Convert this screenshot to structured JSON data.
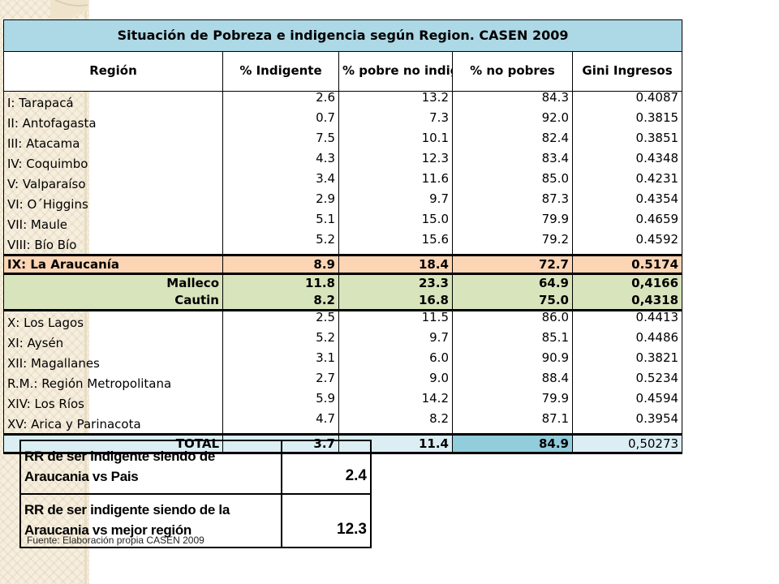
{
  "title": "Situación de Pobreza e indigencia según Region. CASEN 2009",
  "headers": {
    "region": "Región",
    "indigente": "% Indigente",
    "pobre_no_indigente": "% pobre no indigente",
    "no_pobres": "% no pobres",
    "gini": "Gini Ingresos"
  },
  "regions_top": [
    {
      "name": "I: Tarapacá",
      "indigente": "2.6",
      "pobre": "13.2",
      "no_pobres": "84.3",
      "gini": "0.4087"
    },
    {
      "name": "II: Antofagasta",
      "indigente": "0.7",
      "pobre": "7.3",
      "no_pobres": "92.0",
      "gini": "0.3815"
    },
    {
      "name": "III: Atacama",
      "indigente": "7.5",
      "pobre": "10.1",
      "no_pobres": "82.4",
      "gini": "0.3851"
    },
    {
      "name": "IV: Coquimbo",
      "indigente": "4.3",
      "pobre": "12.3",
      "no_pobres": "83.4",
      "gini": "0.4348"
    },
    {
      "name": "V: Valparaíso",
      "indigente": "3.4",
      "pobre": "11.6",
      "no_pobres": "85.0",
      "gini": "0.4231"
    },
    {
      "name": "VI: O´Higgins",
      "indigente": "2.9",
      "pobre": "9.7",
      "no_pobres": "87.3",
      "gini": "0.4354"
    },
    {
      "name": "VII: Maule",
      "indigente": "5.1",
      "pobre": "15.0",
      "no_pobres": "79.9",
      "gini": "0.4659"
    },
    {
      "name": "VIII: Bío Bío",
      "indigente": "5.2",
      "pobre": "15.6",
      "no_pobres": "79.2",
      "gini": "0.4592"
    }
  ],
  "araucania": {
    "name": "IX: La Araucanía",
    "indigente": "8.9",
    "pobre": "18.4",
    "no_pobres": "72.7",
    "gini": "0.5174"
  },
  "provinces": [
    {
      "name": "Malleco",
      "indigente": "11.8",
      "pobre": "23.3",
      "no_pobres": "64.9",
      "gini": "0,4166"
    },
    {
      "name": "Cautin",
      "indigente": "8.2",
      "pobre": "16.8",
      "no_pobres": "75.0",
      "gini": "0,4318"
    }
  ],
  "regions_bottom": [
    {
      "name": "X: Los Lagos",
      "indigente": "2.5",
      "pobre": "11.5",
      "no_pobres": "86.0",
      "gini": "0.4413"
    },
    {
      "name": "XI: Aysén",
      "indigente": "5.2",
      "pobre": "9.7",
      "no_pobres": "85.1",
      "gini": "0.4486"
    },
    {
      "name": "XII: Magallanes",
      "indigente": "3.1",
      "pobre": "6.0",
      "no_pobres": "90.9",
      "gini": "0.3821"
    },
    {
      "name": "R.M.: Región Metropolitana",
      "indigente": "2.7",
      "pobre": "9.0",
      "no_pobres": "88.4",
      "gini": "0.5234"
    },
    {
      "name": "XIV: Los Ríos",
      "indigente": "5.9",
      "pobre": "14.2",
      "no_pobres": "79.9",
      "gini": "0.4594"
    },
    {
      "name": "XV: Arica y Parinacota",
      "indigente": "4.7",
      "pobre": "8.2",
      "no_pobres": "87.1",
      "gini": "0.3954"
    }
  ],
  "total": {
    "name": "TOTAL",
    "indigente": "3.7",
    "pobre": "11.4",
    "no_pobres": "84.9",
    "gini": "0,50273"
  },
  "rr": [
    {
      "label": "RR de ser indigente siendo de Araucania vs Pais",
      "value": "2.4"
    },
    {
      "label": "RR de ser indigente siendo de la Araucania vs mejor región",
      "value": "12.3"
    }
  ],
  "source": "Fuente: Elaboración propia CASEN 2009",
  "colors": {
    "title_bg": "#add8e6",
    "araucania_bg": "#fcd5b5",
    "provinces_bg": "#d8e4bc",
    "total_bg": "#daeef3",
    "total_highlight": "#92cddc"
  }
}
